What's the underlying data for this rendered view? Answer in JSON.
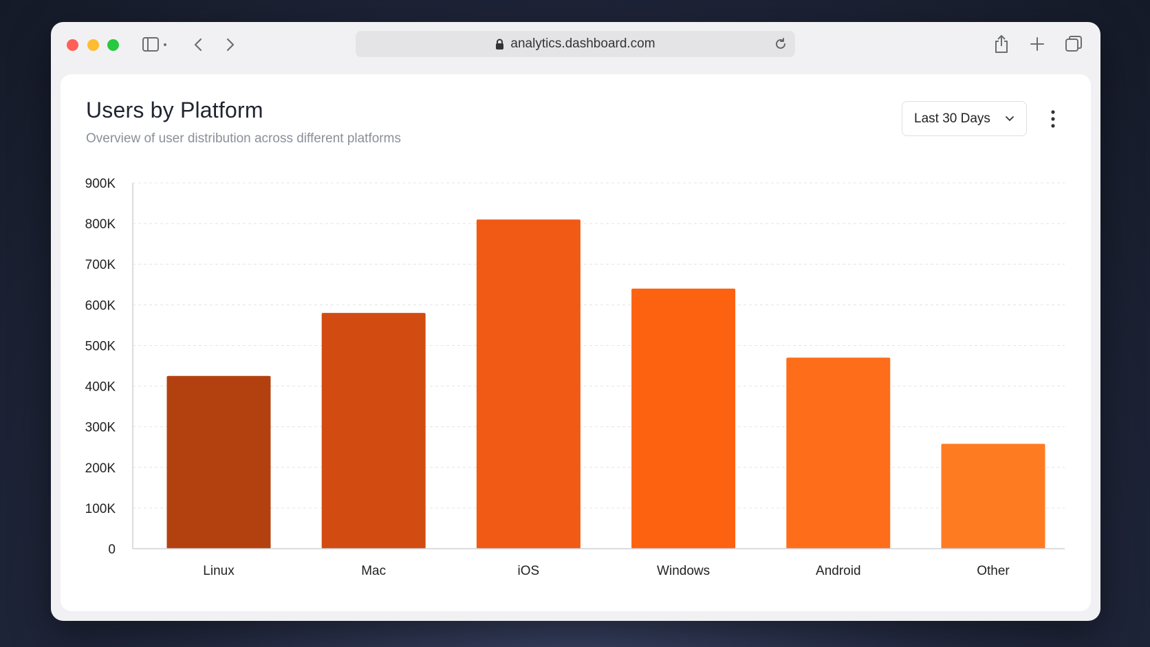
{
  "browser": {
    "url": "analytics.dashboard.com",
    "icons": [
      "sidebar-icon",
      "chevron-left-icon",
      "chevron-right-icon",
      "lock-icon",
      "reload-icon",
      "share-icon",
      "plus-icon",
      "tabs-icon"
    ]
  },
  "header": {
    "title": "Users by Platform",
    "subtitle": "Overview of user distribution across different platforms",
    "range_label": "Last 30 Days"
  },
  "colors": {
    "bar_start": "#b3410f",
    "bar_end": "#ff7b22",
    "gridline": "#e3e4e8",
    "axis": "#cfd1d6"
  },
  "chart_data": {
    "type": "bar",
    "title": "Users by Platform",
    "subtitle": "Overview of user distribution across different platforms",
    "categories": [
      "Linux",
      "Mac",
      "iOS",
      "Windows",
      "Android",
      "Other"
    ],
    "values": [
      425000,
      580000,
      810000,
      640000,
      470000,
      258000
    ],
    "ylim": [
      0,
      900000
    ],
    "yticks": [
      0,
      100000,
      200000,
      300000,
      400000,
      500000,
      600000,
      700000,
      800000,
      900000
    ],
    "ytick_labels": [
      "0",
      "100K",
      "200K",
      "300K",
      "400K",
      "500K",
      "600K",
      "700K",
      "800K",
      "900K"
    ],
    "bar_colors": [
      "#b3410f",
      "#d24c11",
      "#f05a14",
      "#fd6210",
      "#fe6e1a",
      "#ff7b22"
    ],
    "grid": true,
    "legend": "none"
  }
}
